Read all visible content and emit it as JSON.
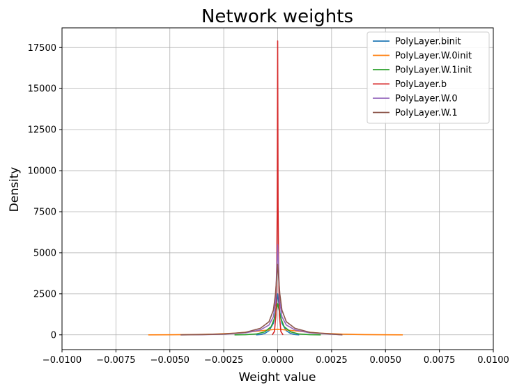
{
  "chart_data": {
    "type": "line",
    "title": "Network weights",
    "xlabel": "Weight value",
    "ylabel": "Density",
    "xlim": [
      -0.01,
      0.01
    ],
    "ylim": [
      -900,
      18700
    ],
    "xticks": [
      -0.01,
      -0.0075,
      -0.005,
      -0.0025,
      0.0,
      0.0025,
      0.005,
      0.0075,
      0.01
    ],
    "xtick_labels": [
      "−0.0100",
      "−0.0075",
      "−0.0050",
      "−0.0025",
      "0.0000",
      "0.0025",
      "0.0050",
      "0.0075",
      "0.0100"
    ],
    "yticks": [
      0,
      2500,
      5000,
      7500,
      10000,
      12500,
      15000,
      17500
    ],
    "ytick_labels": [
      "0",
      "2500",
      "5000",
      "7500",
      "10000",
      "12500",
      "15000",
      "17500"
    ],
    "grid": true,
    "legend_position": "top-right",
    "series": [
      {
        "name": "PolyLayer.binit",
        "color": "#1f77b4",
        "x": [
          -0.001,
          -0.0008,
          -0.0006,
          -0.0004,
          -0.0002,
          -0.0001,
          0.0,
          0.0001,
          0.0002,
          0.0004,
          0.0006,
          0.0008,
          0.001
        ],
        "y": [
          0,
          20,
          80,
          250,
          700,
          1400,
          2500,
          1400,
          700,
          250,
          80,
          20,
          0
        ]
      },
      {
        "name": "PolyLayer.W.0init",
        "color": "#ff7f0e",
        "x": [
          -0.006,
          -0.005,
          -0.004,
          -0.003,
          -0.002,
          -0.0012,
          -0.0006,
          -0.0002,
          0.0,
          0.0002,
          0.0006,
          0.0012,
          0.002,
          0.003,
          0.004,
          0.005,
          0.0058
        ],
        "y": [
          0,
          5,
          15,
          40,
          100,
          190,
          270,
          320,
          340,
          320,
          270,
          190,
          100,
          40,
          15,
          5,
          0
        ]
      },
      {
        "name": "PolyLayer.W.1init",
        "color": "#2ca02c",
        "x": [
          -0.002,
          -0.0015,
          -0.001,
          -0.0006,
          -0.0003,
          -0.00015,
          0.0,
          0.00015,
          0.0003,
          0.0006,
          0.001,
          0.0015,
          0.002
        ],
        "y": [
          0,
          10,
          50,
          180,
          500,
          1000,
          1900,
          1000,
          500,
          180,
          50,
          10,
          0
        ]
      },
      {
        "name": "PolyLayer.b",
        "color": "#d62728",
        "x": [
          -0.00025,
          -0.00015,
          -8e-05,
          -4e-05,
          -2e-05,
          0.0,
          2e-05,
          4e-05,
          8e-05,
          0.00015,
          0.00025
        ],
        "y": [
          0,
          200,
          1200,
          4500,
          7800,
          17900,
          7800,
          4500,
          1200,
          200,
          0
        ]
      },
      {
        "name": "PolyLayer.W.0",
        "color": "#9467bd",
        "x": [
          -0.0045,
          -0.0035,
          -0.0025,
          -0.0015,
          -0.0008,
          -0.0004,
          -0.0002,
          -0.0001,
          0.0,
          0.0001,
          0.0002,
          0.0004,
          0.0008,
          0.0015,
          0.0025,
          0.003
        ],
        "y": [
          0,
          10,
          40,
          120,
          300,
          600,
          1100,
          2000,
          5500,
          2000,
          1100,
          600,
          300,
          120,
          40,
          0
        ]
      },
      {
        "name": "PolyLayer.W.1",
        "color": "#8c564b",
        "x": [
          -0.0045,
          -0.0035,
          -0.0025,
          -0.0015,
          -0.0008,
          -0.0004,
          -0.0002,
          -0.0001,
          0.0,
          0.0001,
          0.0002,
          0.0004,
          0.0008,
          0.0015,
          0.0025,
          0.003
        ],
        "y": [
          0,
          15,
          50,
          150,
          400,
          800,
          1500,
          2500,
          4300,
          2500,
          1500,
          800,
          400,
          150,
          50,
          0
        ]
      }
    ]
  }
}
